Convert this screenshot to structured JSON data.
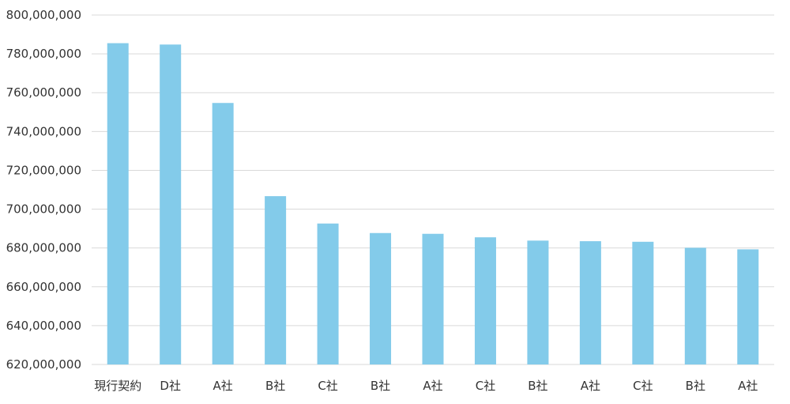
{
  "chart_data": {
    "type": "bar",
    "categories": [
      "現行契約",
      "D社",
      "A社",
      "B社",
      "C社",
      "B社",
      "A社",
      "C社",
      "B社",
      "A社",
      "C社",
      "B社",
      "A社"
    ],
    "values": [
      785500000,
      784800000,
      754700000,
      706700000,
      692600000,
      687700000,
      687300000,
      685500000,
      683800000,
      683500000,
      683200000,
      680100000,
      679300000
    ],
    "ylim": [
      620000000,
      800000000
    ],
    "yticks": [
      "620,000,000",
      "640,000,000",
      "660,000,000",
      "680,000,000",
      "700,000,000",
      "720,000,000",
      "740,000,000",
      "760,000,000",
      "780,000,000",
      "800,000,000"
    ],
    "ytick_values": [
      620000000,
      640000000,
      660000000,
      680000000,
      700000000,
      720000000,
      740000000,
      760000000,
      780000000,
      800000000
    ],
    "grid": true,
    "colors": {
      "bar": "#83CBEA",
      "grid": "#D9D9D9",
      "text": "#333333"
    }
  }
}
